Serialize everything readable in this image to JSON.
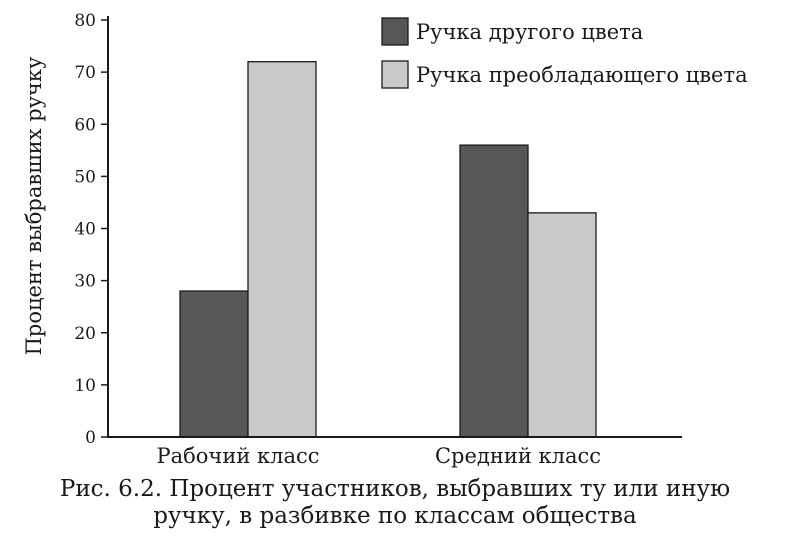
{
  "chart_data": {
    "type": "bar",
    "categories": [
      "Рабочий класс",
      "Средний класс"
    ],
    "series": [
      {
        "name": "Ручка другого цвета",
        "values": [
          28,
          56
        ],
        "color": "#575757"
      },
      {
        "name": "Ручка преобладающего цвета",
        "values": [
          72,
          43
        ],
        "color": "#c9caca"
      }
    ],
    "ylabel": "Процент выбравших ручку",
    "xlabel": "",
    "ylim": [
      0,
      80
    ],
    "yticks": [
      "0",
      "10",
      "20",
      "30",
      "40",
      "50",
      "60",
      "70",
      "80"
    ],
    "grid": false,
    "legend_position": "top-right"
  },
  "caption": {
    "line1": "Рис. 6.2. Процент участников, выбравших ту или иную",
    "line2": "ручку, в разбивке по классам общества"
  }
}
